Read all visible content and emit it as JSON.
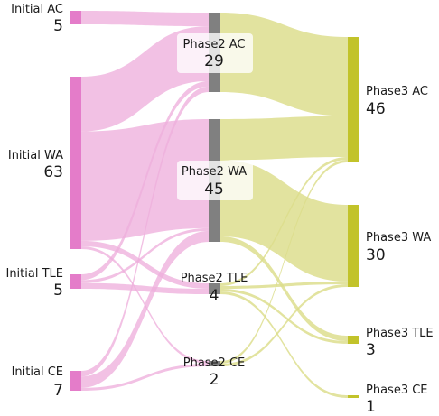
{
  "diagram": {
    "type": "sankey",
    "colors": {
      "initial": "#e47cc9",
      "initial_link": "#eeb0dd",
      "phase2": "#808080",
      "phase3": "#c2c32a",
      "phase3_link": "#dcdd8a"
    },
    "nodes": [
      {
        "id": "initial-ac",
        "name": "Initial AC",
        "value": "5"
      },
      {
        "id": "initial-wa",
        "name": "Initial WA",
        "value": "63"
      },
      {
        "id": "initial-tle",
        "name": "Initial TLE",
        "value": "5"
      },
      {
        "id": "initial-ce",
        "name": "Initial CE",
        "value": "7"
      },
      {
        "id": "phase2-ac",
        "name": "Phase2 AC",
        "value": "29"
      },
      {
        "id": "phase2-wa",
        "name": "Phase2 WA",
        "value": "45"
      },
      {
        "id": "phase2-tle",
        "name": "Phase2 TLE",
        "value": "4"
      },
      {
        "id": "phase2-ce",
        "name": "Phase2 CE",
        "value": "2"
      },
      {
        "id": "phase3-ac",
        "name": "Phase3 AC",
        "value": "46"
      },
      {
        "id": "phase3-wa",
        "name": "Phase3 WA",
        "value": "30"
      },
      {
        "id": "phase3-tle",
        "name": "Phase3 TLE",
        "value": "3"
      },
      {
        "id": "phase3-ce",
        "name": "Phase3 CE",
        "value": "1"
      }
    ],
    "links": [
      {
        "source": "initial-ac",
        "target": "phase2-ac",
        "value": 5
      },
      {
        "source": "initial-wa",
        "target": "phase2-ac",
        "value": 20
      },
      {
        "source": "initial-wa",
        "target": "phase2-wa",
        "value": 40
      },
      {
        "source": "initial-wa",
        "target": "phase2-tle",
        "value": 2
      },
      {
        "source": "initial-wa",
        "target": "phase2-ce",
        "value": 1
      },
      {
        "source": "initial-tle",
        "target": "phase2-ac",
        "value": 2
      },
      {
        "source": "initial-tle",
        "target": "phase2-wa",
        "value": 1
      },
      {
        "source": "initial-tle",
        "target": "phase2-tle",
        "value": 2
      },
      {
        "source": "initial-ce",
        "target": "phase2-ac",
        "value": 2
      },
      {
        "source": "initial-ce",
        "target": "phase2-wa",
        "value": 4
      },
      {
        "source": "initial-ce",
        "target": "phase2-ce",
        "value": 1
      },
      {
        "source": "phase2-ac",
        "target": "phase3-ac",
        "value": 29
      },
      {
        "source": "phase2-wa",
        "target": "phase3-ac",
        "value": 15
      },
      {
        "source": "phase2-wa",
        "target": "phase3-wa",
        "value": 28
      },
      {
        "source": "phase2-wa",
        "target": "phase3-tle",
        "value": 2
      },
      {
        "source": "phase2-tle",
        "target": "phase3-ac",
        "value": 1
      },
      {
        "source": "phase2-tle",
        "target": "phase3-wa",
        "value": 1
      },
      {
        "source": "phase2-tle",
        "target": "phase3-tle",
        "value": 1
      },
      {
        "source": "phase2-tle",
        "target": "phase3-ce",
        "value": 1
      },
      {
        "source": "phase2-ce",
        "target": "phase3-ac",
        "value": 1
      },
      {
        "source": "phase2-ce",
        "target": "phase3-wa",
        "value": 1
      }
    ]
  }
}
